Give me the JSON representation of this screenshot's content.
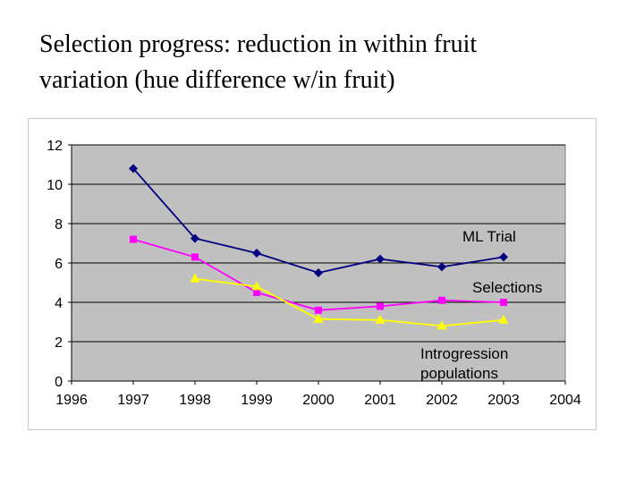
{
  "slide": {
    "title_line1": "Selection progress: reduction in within fruit",
    "title_line2": "variation (hue difference w/in fruit)"
  },
  "chart_data": {
    "type": "line",
    "title": "",
    "xlabel": "",
    "ylabel": "",
    "xlim": [
      1996,
      2004
    ],
    "ylim": [
      0,
      12
    ],
    "xticks": [
      1996,
      1997,
      1998,
      1999,
      2000,
      2001,
      2002,
      2003,
      2004
    ],
    "yticks": [
      0,
      2,
      4,
      6,
      8,
      10,
      12
    ],
    "grid": true,
    "plot_background": "#c0c0c0",
    "series": [
      {
        "name": "ML Trial",
        "color": "#000080",
        "marker": "diamond",
        "x": [
          1997,
          1998,
          1999,
          2000,
          2001,
          2002,
          2003
        ],
        "values": [
          10.8,
          7.25,
          6.5,
          5.5,
          6.2,
          5.8,
          6.3
        ]
      },
      {
        "name": "Selections",
        "color": "#ff00ff",
        "marker": "square",
        "x": [
          1997,
          1998,
          1999,
          2000,
          2001,
          2002,
          2003
        ],
        "values": [
          7.2,
          6.3,
          4.5,
          3.6,
          3.8,
          4.1,
          4.0
        ]
      },
      {
        "name": "Introgression populations",
        "label_lines": [
          "Introgression",
          "populations"
        ],
        "color": "#ffff00",
        "marker": "triangle",
        "x": [
          1998,
          1999,
          2000,
          2001,
          2002,
          2003
        ],
        "values": [
          5.2,
          4.8,
          3.15,
          3.1,
          2.8,
          3.1
        ]
      }
    ]
  }
}
